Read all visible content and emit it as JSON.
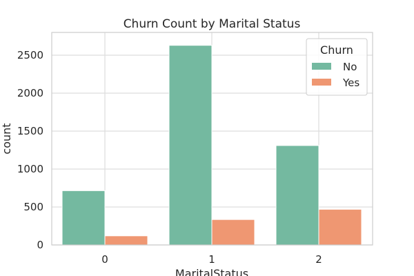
{
  "chart_data": {
    "type": "bar",
    "title": "Churn Count by Marital Status",
    "xlabel": "MaritalStatus",
    "ylabel": "count",
    "categories": [
      "0",
      "1",
      "2"
    ],
    "ylim": [
      0,
      2800
    ],
    "yticks": [
      0,
      500,
      1000,
      1500,
      2000,
      2500
    ],
    "grid": true,
    "legend": {
      "title": "Churn",
      "placement": "top-right"
    },
    "series": [
      {
        "name": "No",
        "values": [
          715,
          2630,
          1310
        ],
        "color": "#74b9a0"
      },
      {
        "name": "Yes",
        "values": [
          120,
          335,
          470
        ],
        "color": "#ef9772"
      }
    ]
  }
}
